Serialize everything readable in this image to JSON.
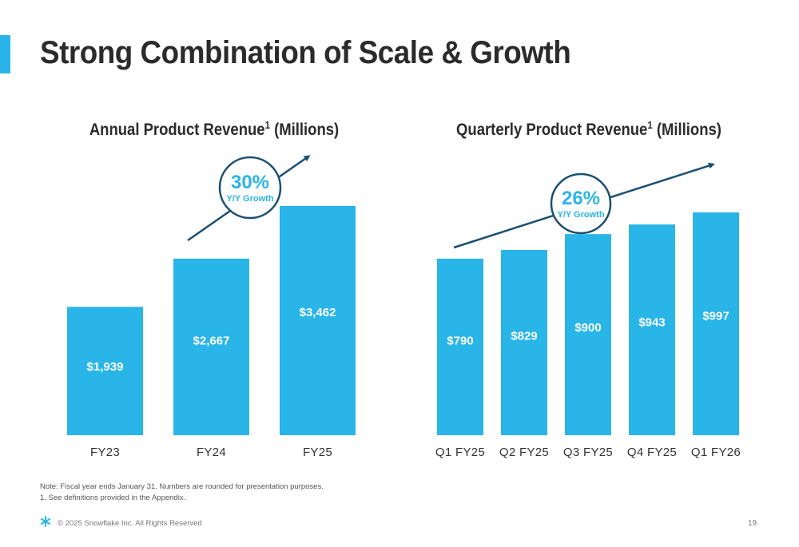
{
  "slide": {
    "title": "Strong Combination of Scale & Growth",
    "note_line1": "Note: Fiscal year ends January 31. Numbers are rounded for presentation purposes.",
    "note_line2": "1. See definitions provided in the Appendix.",
    "copyright": "© 2025 Snowflake Inc. All Rights Reserved",
    "page_number": "19",
    "colors": {
      "bar": "#29b5e8",
      "arrow": "#1b4f72",
      "growth_text": "#29b5e8",
      "title": "#2b2b2b"
    }
  },
  "chart_data": [
    {
      "type": "bar",
      "title": "Annual Product Revenue",
      "title_sup": "1",
      "title_suffix": " (Millions)",
      "categories": [
        "FY23",
        "FY24",
        "FY25"
      ],
      "values": [
        1939,
        2667,
        3462
      ],
      "value_labels": [
        "$1,939",
        "$2,667",
        "$3,462"
      ],
      "ylim": [
        0,
        3462
      ],
      "growth": {
        "value": "30%",
        "label": "Y/Y Growth"
      }
    },
    {
      "type": "bar",
      "title": "Quarterly Product Revenue",
      "title_sup": "1",
      "title_suffix": " (Millions)",
      "categories": [
        "Q1 FY25",
        "Q2 FY25",
        "Q3 FY25",
        "Q4 FY25",
        "Q1 FY26"
      ],
      "values": [
        790,
        829,
        900,
        943,
        997
      ],
      "value_labels": [
        "$790",
        "$829",
        "$900",
        "$943",
        "$997"
      ],
      "ylim": [
        0,
        997
      ],
      "growth": {
        "value": "26%",
        "label": "Y/Y Growth"
      }
    }
  ]
}
